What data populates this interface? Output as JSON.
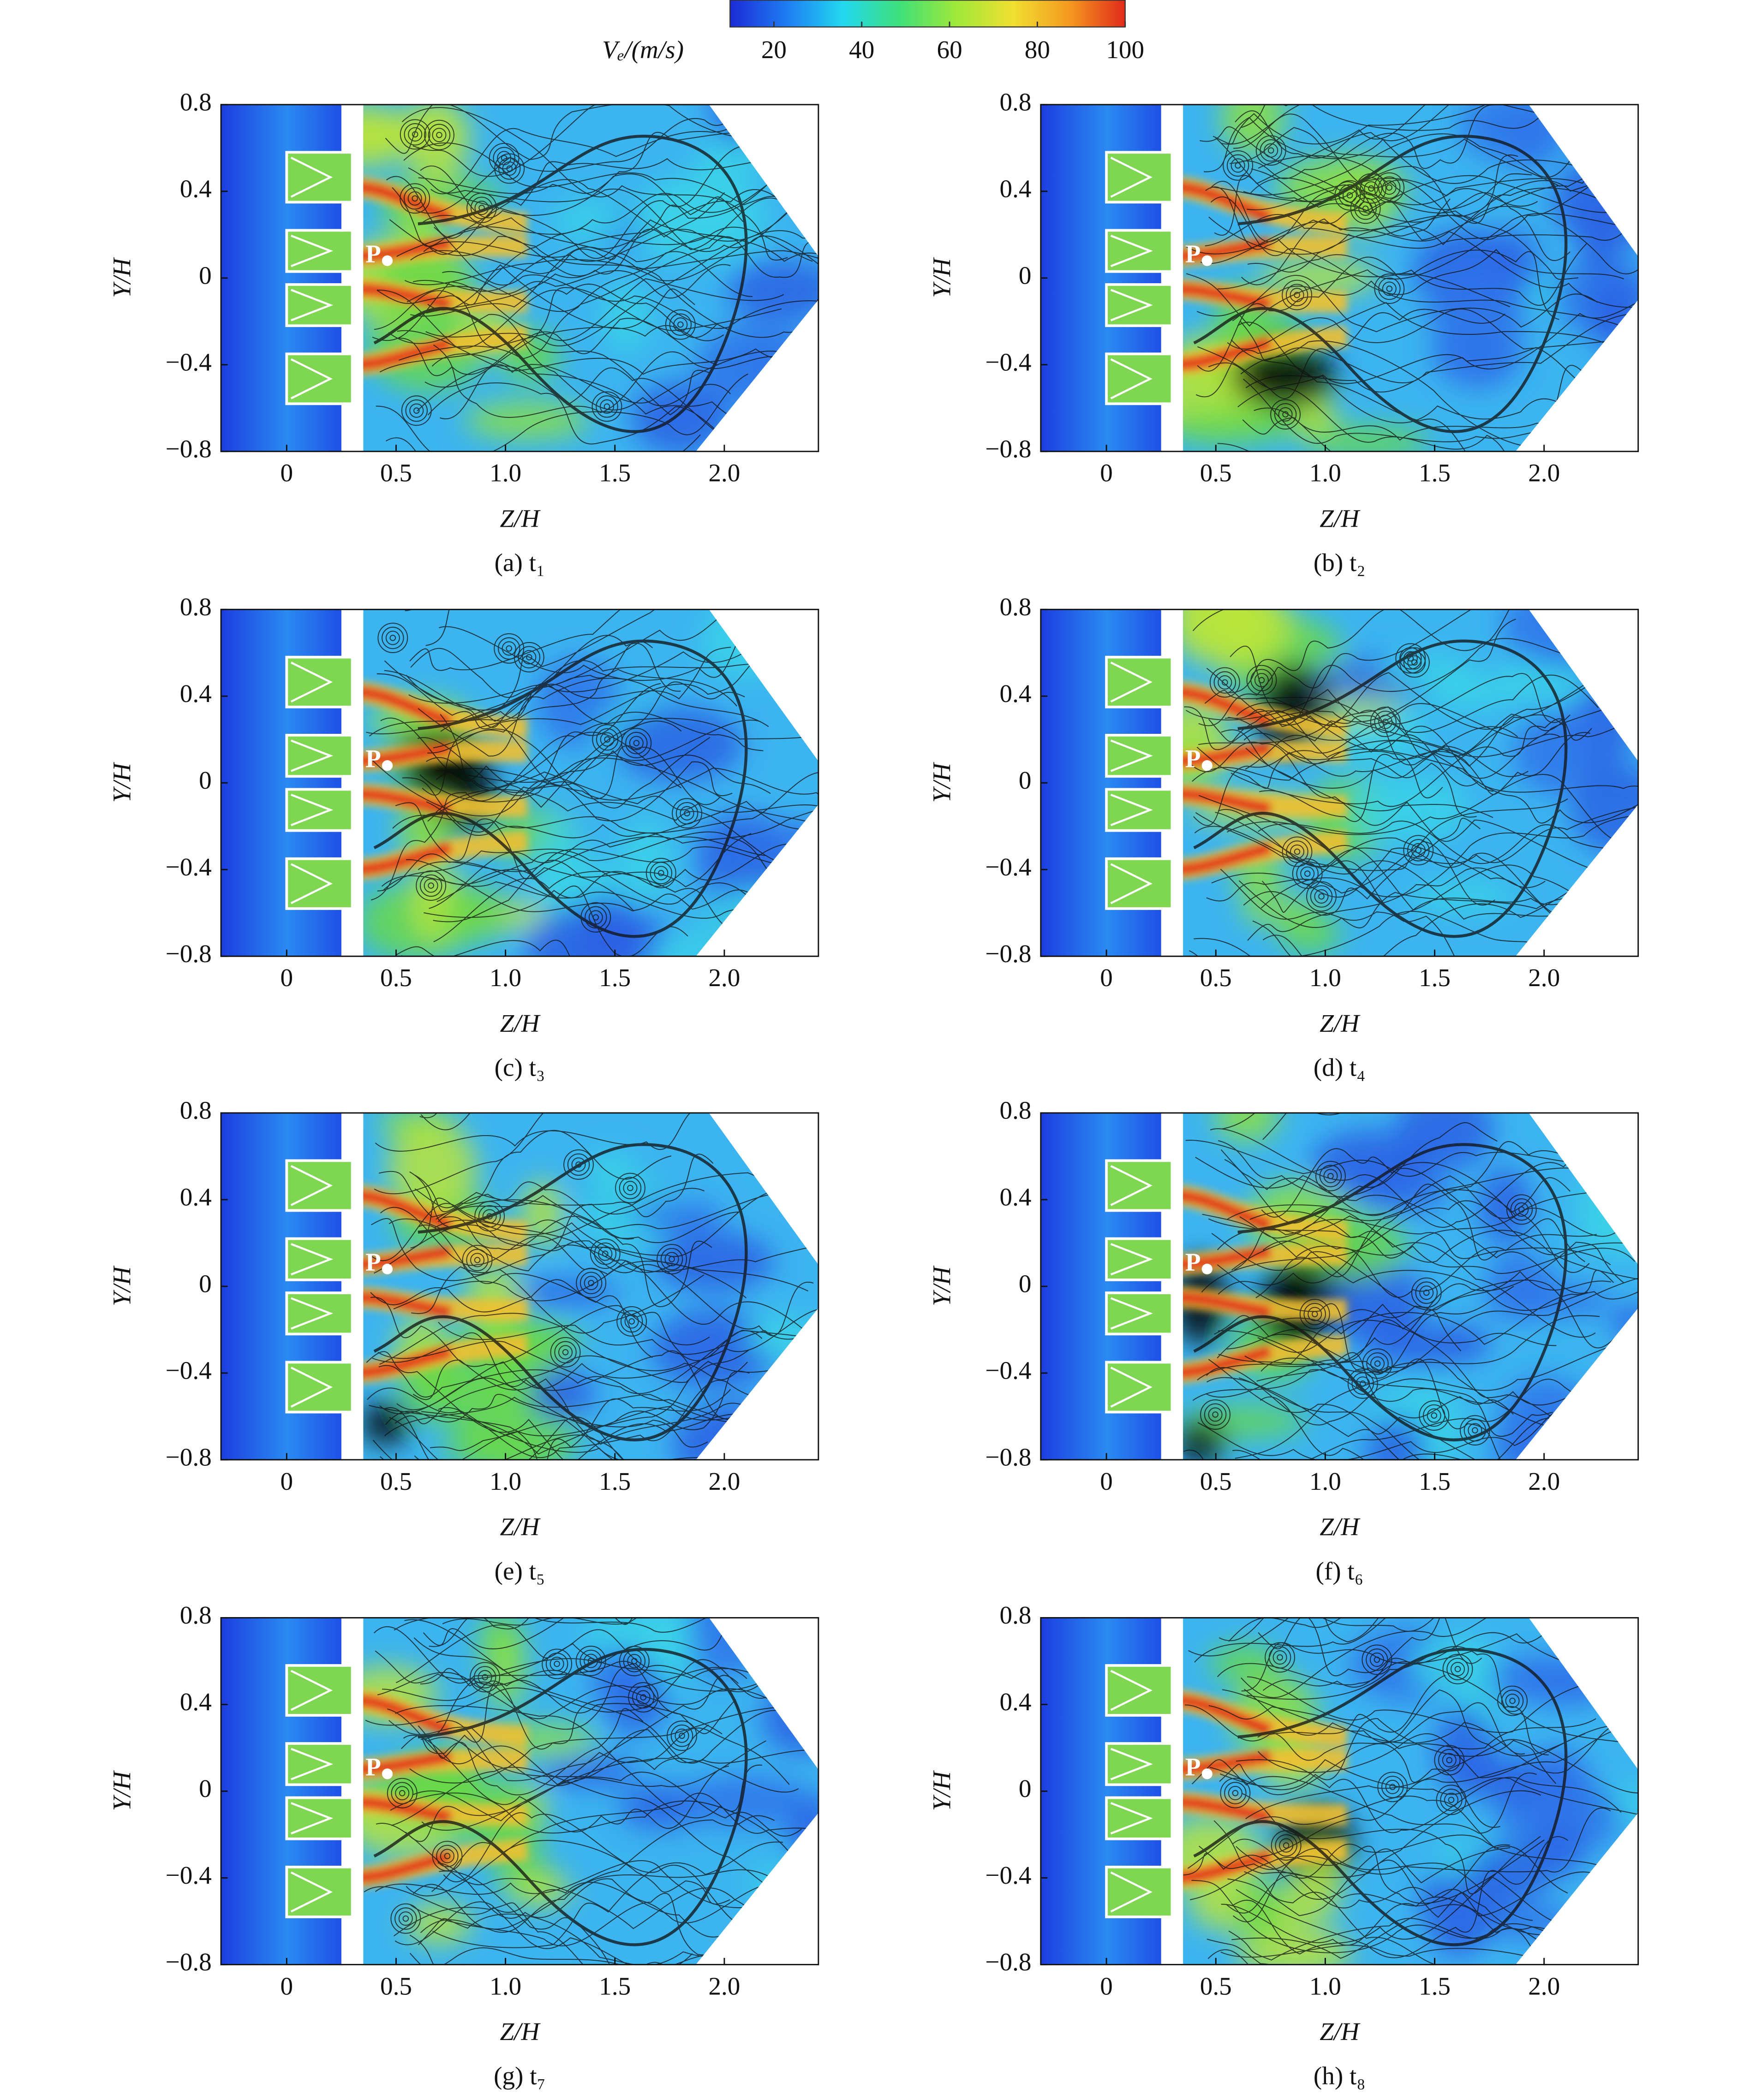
{
  "colorbar": {
    "label": "Vₑ/(m/s)",
    "clim": [
      10,
      100
    ],
    "ticks": [
      20,
      40,
      60,
      80,
      100
    ],
    "colors": [
      "#1c2bd6",
      "#1e7cf2",
      "#22d8f0",
      "#3ee07a",
      "#9ee83a",
      "#f0e030",
      "#f59a20",
      "#e02a1a"
    ]
  },
  "chart_data": [
    {
      "type": "contour",
      "caption": "(a) t₁",
      "xlabel": "Z/H",
      "ylabel": "Y/H",
      "point_label": "P",
      "xlim": [
        -0.3,
        2.43
      ],
      "ylim": [
        -0.8,
        0.8
      ],
      "xticks": [
        0,
        0.5,
        {
          "value": 1,
          "label": "1.0"
        },
        1.5,
        {
          "value": 2,
          "label": "2.0"
        }
      ],
      "yticks": [
        {
          "value": -0.8,
          "label": "−0.8"
        },
        {
          "value": -0.4,
          "label": "−0.4"
        },
        0,
        0.4,
        0.8
      ]
    },
    {
      "type": "contour",
      "caption": "(b) t₂",
      "xlabel": "Z/H",
      "ylabel": "Y/H",
      "point_label": "P",
      "xlim": [
        -0.3,
        2.43
      ],
      "ylim": [
        -0.8,
        0.8
      ],
      "xticks": [
        0,
        0.5,
        {
          "value": 1,
          "label": "1.0"
        },
        1.5,
        {
          "value": 2,
          "label": "2.0"
        }
      ],
      "yticks": [
        {
          "value": -0.8,
          "label": "−0.8"
        },
        {
          "value": -0.4,
          "label": "−0.4"
        },
        0,
        0.4,
        0.8
      ]
    },
    {
      "type": "contour",
      "caption": "(c) t₃",
      "xlabel": "Z/H",
      "ylabel": "Y/H",
      "point_label": "P",
      "xlim": [
        -0.3,
        2.43
      ],
      "ylim": [
        -0.8,
        0.8
      ],
      "xticks": [
        0,
        0.5,
        {
          "value": 1,
          "label": "1.0"
        },
        1.5,
        {
          "value": 2,
          "label": "2.0"
        }
      ],
      "yticks": [
        {
          "value": -0.8,
          "label": "−0.8"
        },
        {
          "value": -0.4,
          "label": "−0.4"
        },
        0,
        0.4,
        0.8
      ]
    },
    {
      "type": "contour",
      "caption": "(d) t₄",
      "xlabel": "Z/H",
      "ylabel": "Y/H",
      "point_label": "P",
      "xlim": [
        -0.3,
        2.43
      ],
      "ylim": [
        -0.8,
        0.8
      ],
      "xticks": [
        0,
        0.5,
        {
          "value": 1,
          "label": "1.0"
        },
        1.5,
        {
          "value": 2,
          "label": "2.0"
        }
      ],
      "yticks": [
        {
          "value": -0.8,
          "label": "−0.8"
        },
        {
          "value": -0.4,
          "label": "−0.4"
        },
        0,
        0.4,
        0.8
      ]
    },
    {
      "type": "contour",
      "caption": "(e) t₅",
      "xlabel": "Z/H",
      "ylabel": "Y/H",
      "point_label": "P",
      "xlim": [
        -0.3,
        2.43
      ],
      "ylim": [
        -0.8,
        0.8
      ],
      "xticks": [
        0,
        0.5,
        {
          "value": 1,
          "label": "1.0"
        },
        1.5,
        {
          "value": 2,
          "label": "2.0"
        }
      ],
      "yticks": [
        {
          "value": -0.8,
          "label": "−0.8"
        },
        {
          "value": -0.4,
          "label": "−0.4"
        },
        0,
        0.4,
        0.8
      ]
    },
    {
      "type": "contour",
      "caption": "(f) t₆",
      "xlabel": "Z/H",
      "ylabel": "Y/H",
      "point_label": "P",
      "xlim": [
        -0.3,
        2.43
      ],
      "ylim": [
        -0.8,
        0.8
      ],
      "xticks": [
        0,
        0.5,
        {
          "value": 1,
          "label": "1.0"
        },
        1.5,
        {
          "value": 2,
          "label": "2.0"
        }
      ],
      "yticks": [
        {
          "value": -0.8,
          "label": "−0.8"
        },
        {
          "value": -0.4,
          "label": "−0.4"
        },
        0,
        0.4,
        0.8
      ]
    },
    {
      "type": "contour",
      "caption": "(g) t₇",
      "xlabel": "Z/H",
      "ylabel": "Y/H",
      "point_label": "P",
      "xlim": [
        -0.3,
        2.43
      ],
      "ylim": [
        -0.8,
        0.8
      ],
      "xticks": [
        0,
        0.5,
        {
          "value": 1,
          "label": "1.0"
        },
        1.5,
        {
          "value": 2,
          "label": "2.0"
        }
      ],
      "yticks": [
        {
          "value": -0.8,
          "label": "−0.8"
        },
        {
          "value": -0.4,
          "label": "−0.4"
        },
        0,
        0.4,
        0.8
      ]
    },
    {
      "type": "contour",
      "caption": "(h) t₈",
      "xlabel": "Z/H",
      "ylabel": "Y/H",
      "point_label": "P",
      "xlim": [
        -0.3,
        2.43
      ],
      "ylim": [
        -0.8,
        0.8
      ],
      "xticks": [
        0,
        0.5,
        {
          "value": 1,
          "label": "1.0"
        },
        1.5,
        {
          "value": 2,
          "label": "2.0"
        }
      ],
      "yticks": [
        {
          "value": -0.8,
          "label": "−0.8"
        },
        {
          "value": -0.4,
          "label": "−0.4"
        },
        0,
        0.4,
        0.8
      ]
    }
  ]
}
